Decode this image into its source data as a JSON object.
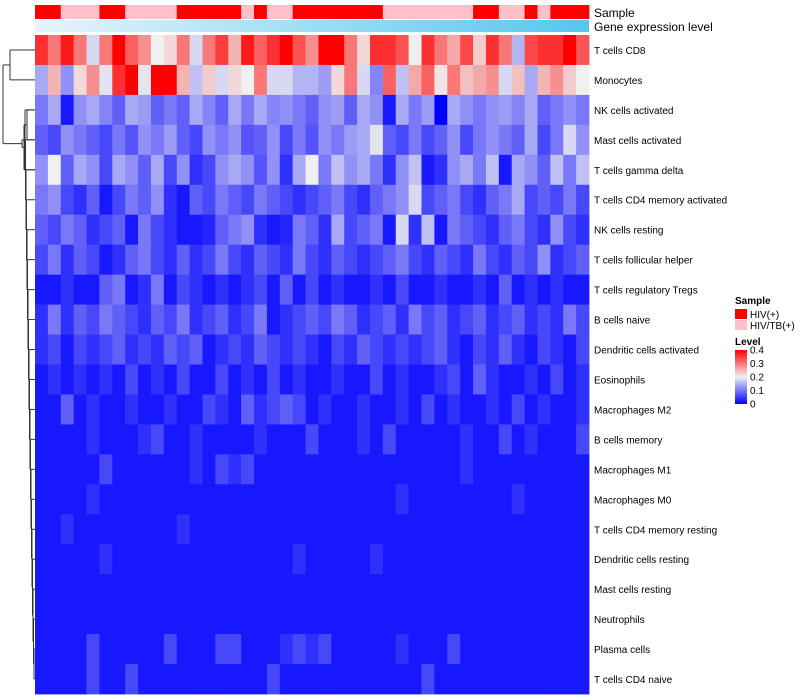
{
  "chart_data": {
    "type": "heatmap",
    "title": "",
    "annotation_tracks": [
      {
        "label": "Sample"
      },
      {
        "label": "Gene expression level"
      }
    ],
    "rows": [
      "T cells CD8",
      "Monocytes",
      "NK cells activated",
      "Mast cells activated",
      "T cells gamma delta",
      "T cells CD4 memory activated",
      "NK cells resting",
      "T cells follicular helper",
      "T cells regulatory  Tregs",
      "B cells naive",
      "Dendritic cells activated",
      "Eosinophils",
      "Macrophages M2",
      "B cells memory",
      "Macrophages M1",
      "Macrophages M0",
      "T cells CD4 memory resting",
      "Dendritic cells resting",
      "Mast cells resting",
      "Neutrophils",
      "Plasma cells",
      "T cells CD4 naive"
    ],
    "n_columns": 43,
    "sample_groups": "AABBBAABBBBAAAAABABBAAAAAAABBBBBBBAABBABAAA",
    "values": [
      [
        0.36,
        0.3,
        0.38,
        0.3,
        0.18,
        0.3,
        0.4,
        0.32,
        0.28,
        0.2,
        0.22,
        0.3,
        0.18,
        0.3,
        0.35,
        0.25,
        0.38,
        0.32,
        0.36,
        0.4,
        0.33,
        0.28,
        0.4,
        0.4,
        0.3,
        0.22,
        0.36,
        0.36,
        0.33,
        0.2,
        0.36,
        0.3,
        0.26,
        0.34,
        0.23,
        0.36,
        0.3,
        0.15,
        0.34,
        0.36,
        0.36,
        0.4,
        0.33
      ],
      [
        0.14,
        0.25,
        0.12,
        0.22,
        0.28,
        0.19,
        0.36,
        0.4,
        0.19,
        0.4,
        0.4,
        0.25,
        0.16,
        0.23,
        0.18,
        0.22,
        0.2,
        0.3,
        0.18,
        0.18,
        0.15,
        0.15,
        0.13,
        0.22,
        0.3,
        0.18,
        0.11,
        0.32,
        0.16,
        0.26,
        0.32,
        0.21,
        0.3,
        0.24,
        0.26,
        0.28,
        0.18,
        0.24,
        0.14,
        0.25,
        0.28,
        0.23,
        0.2
      ],
      [
        0.1,
        0.14,
        0.02,
        0.12,
        0.14,
        0.11,
        0.08,
        0.14,
        0.13,
        0.08,
        0.1,
        0.08,
        0.14,
        0.11,
        0.08,
        0.14,
        0.1,
        0.14,
        0.11,
        0.12,
        0.1,
        0.08,
        0.12,
        0.13,
        0.08,
        0.14,
        0.12,
        0.02,
        0.14,
        0.1,
        0.13,
        0.0,
        0.14,
        0.12,
        0.1,
        0.12,
        0.13,
        0.11,
        0.14,
        0.08,
        0.1,
        0.12,
        0.1
      ],
      [
        0.08,
        0.06,
        0.12,
        0.1,
        0.08,
        0.06,
        0.1,
        0.07,
        0.12,
        0.1,
        0.13,
        0.08,
        0.06,
        0.12,
        0.1,
        0.12,
        0.07,
        0.08,
        0.12,
        0.06,
        0.1,
        0.07,
        0.12,
        0.1,
        0.13,
        0.14,
        0.19,
        0.08,
        0.06,
        0.1,
        0.06,
        0.08,
        0.12,
        0.06,
        0.1,
        0.12,
        0.1,
        0.08,
        0.14,
        0.06,
        0.1,
        0.18,
        0.12
      ],
      [
        0.12,
        0.2,
        0.08,
        0.14,
        0.12,
        0.06,
        0.14,
        0.12,
        0.08,
        0.14,
        0.06,
        0.12,
        0.04,
        0.06,
        0.12,
        0.14,
        0.12,
        0.07,
        0.12,
        0.04,
        0.14,
        0.2,
        0.1,
        0.16,
        0.12,
        0.14,
        0.1,
        0.04,
        0.12,
        0.16,
        0.02,
        0.04,
        0.12,
        0.14,
        0.1,
        0.16,
        0.02,
        0.14,
        0.12,
        0.08,
        0.16,
        0.1,
        0.16
      ],
      [
        0.1,
        0.12,
        0.06,
        0.04,
        0.08,
        0.02,
        0.06,
        0.1,
        0.08,
        0.12,
        0.04,
        0.02,
        0.08,
        0.06,
        0.1,
        0.08,
        0.06,
        0.1,
        0.08,
        0.06,
        0.04,
        0.06,
        0.08,
        0.1,
        0.06,
        0.04,
        0.08,
        0.1,
        0.12,
        0.18,
        0.06,
        0.08,
        0.1,
        0.06,
        0.04,
        0.08,
        0.1,
        0.14,
        0.06,
        0.08,
        0.06,
        0.1,
        0.06
      ],
      [
        0.08,
        0.06,
        0.1,
        0.08,
        0.04,
        0.06,
        0.08,
        0.02,
        0.1,
        0.06,
        0.04,
        0.02,
        0.02,
        0.03,
        0.08,
        0.1,
        0.12,
        0.04,
        0.02,
        0.03,
        0.1,
        0.08,
        0.04,
        0.14,
        0.06,
        0.08,
        0.1,
        0.02,
        0.18,
        0.04,
        0.16,
        0.02,
        0.1,
        0.08,
        0.06,
        0.04,
        0.08,
        0.1,
        0.06,
        0.04,
        0.12,
        0.06,
        0.04
      ],
      [
        0.06,
        0.1,
        0.04,
        0.08,
        0.06,
        0.02,
        0.04,
        0.08,
        0.1,
        0.06,
        0.04,
        0.08,
        0.04,
        0.06,
        0.1,
        0.06,
        0.04,
        0.08,
        0.06,
        0.04,
        0.1,
        0.06,
        0.04,
        0.08,
        0.06,
        0.04,
        0.06,
        0.08,
        0.1,
        0.06,
        0.04,
        0.08,
        0.06,
        0.04,
        0.1,
        0.06,
        0.04,
        0.08,
        0.06,
        0.12,
        0.04,
        0.06,
        0.08
      ],
      [
        0.02,
        0.02,
        0.04,
        0.02,
        0.02,
        0.08,
        0.1,
        0.02,
        0.04,
        0.1,
        0.02,
        0.06,
        0.04,
        0.02,
        0.04,
        0.02,
        0.04,
        0.06,
        0.02,
        0.08,
        0.02,
        0.06,
        0.02,
        0.04,
        0.02,
        0.02,
        0.04,
        0.02,
        0.06,
        0.02,
        0.02,
        0.04,
        0.02,
        0.02,
        0.04,
        0.02,
        0.08,
        0.02,
        0.04,
        0.02,
        0.04,
        0.02,
        0.02
      ],
      [
        0.04,
        0.1,
        0.04,
        0.08,
        0.06,
        0.1,
        0.08,
        0.06,
        0.04,
        0.08,
        0.06,
        0.1,
        0.04,
        0.06,
        0.08,
        0.04,
        0.06,
        0.1,
        0.02,
        0.04,
        0.06,
        0.08,
        0.06,
        0.1,
        0.08,
        0.04,
        0.06,
        0.08,
        0.04,
        0.1,
        0.06,
        0.08,
        0.04,
        0.06,
        0.08,
        0.04,
        0.06,
        0.08,
        0.04,
        0.06,
        0.04,
        0.1,
        0.06
      ],
      [
        0.04,
        0.06,
        0.02,
        0.06,
        0.04,
        0.06,
        0.08,
        0.04,
        0.06,
        0.04,
        0.08,
        0.06,
        0.08,
        0.02,
        0.04,
        0.06,
        0.04,
        0.08,
        0.06,
        0.04,
        0.06,
        0.04,
        0.02,
        0.06,
        0.04,
        0.08,
        0.06,
        0.04,
        0.06,
        0.04,
        0.06,
        0.08,
        0.04,
        0.02,
        0.06,
        0.04,
        0.08,
        0.04,
        0.02,
        0.06,
        0.04,
        0.02,
        0.06
      ],
      [
        0.02,
        0.04,
        0.02,
        0.04,
        0.02,
        0.04,
        0.02,
        0.06,
        0.02,
        0.04,
        0.02,
        0.06,
        0.02,
        0.02,
        0.06,
        0.02,
        0.04,
        0.02,
        0.06,
        0.02,
        0.04,
        0.02,
        0.02,
        0.04,
        0.02,
        0.02,
        0.06,
        0.02,
        0.04,
        0.02,
        0.02,
        0.04,
        0.06,
        0.02,
        0.08,
        0.04,
        0.02,
        0.02,
        0.04,
        0.02,
        0.06,
        0.02,
        0.04
      ],
      [
        0.02,
        0.02,
        0.08,
        0.02,
        0.04,
        0.02,
        0.02,
        0.04,
        0.02,
        0.02,
        0.04,
        0.02,
        0.02,
        0.06,
        0.04,
        0.02,
        0.08,
        0.04,
        0.06,
        0.08,
        0.06,
        0.02,
        0.04,
        0.02,
        0.02,
        0.04,
        0.02,
        0.02,
        0.04,
        0.02,
        0.06,
        0.02,
        0.04,
        0.02,
        0.02,
        0.04,
        0.02,
        0.06,
        0.02,
        0.04,
        0.02,
        0.02,
        0.04
      ],
      [
        0.02,
        0.02,
        0.02,
        0.02,
        0.04,
        0.02,
        0.02,
        0.02,
        0.04,
        0.06,
        0.02,
        0.02,
        0.04,
        0.02,
        0.02,
        0.02,
        0.02,
        0.04,
        0.02,
        0.02,
        0.02,
        0.06,
        0.02,
        0.02,
        0.02,
        0.04,
        0.02,
        0.06,
        0.02,
        0.02,
        0.02,
        0.02,
        0.02,
        0.04,
        0.02,
        0.02,
        0.06,
        0.02,
        0.04,
        0.02,
        0.02,
        0.02,
        0.06
      ],
      [
        0.02,
        0.02,
        0.02,
        0.02,
        0.02,
        0.06,
        0.02,
        0.02,
        0.02,
        0.02,
        0.02,
        0.02,
        0.04,
        0.02,
        0.06,
        0.04,
        0.06,
        0.02,
        0.02,
        0.02,
        0.02,
        0.02,
        0.02,
        0.02,
        0.02,
        0.02,
        0.02,
        0.02,
        0.02,
        0.02,
        0.02,
        0.02,
        0.02,
        0.04,
        0.02,
        0.02,
        0.02,
        0.02,
        0.02,
        0.02,
        0.02,
        0.02,
        0.02
      ],
      [
        0.02,
        0.02,
        0.02,
        0.02,
        0.04,
        0.02,
        0.02,
        0.02,
        0.02,
        0.02,
        0.02,
        0.02,
        0.02,
        0.02,
        0.02,
        0.02,
        0.02,
        0.02,
        0.02,
        0.02,
        0.02,
        0.02,
        0.02,
        0.02,
        0.02,
        0.02,
        0.02,
        0.02,
        0.04,
        0.02,
        0.02,
        0.02,
        0.02,
        0.02,
        0.02,
        0.02,
        0.02,
        0.04,
        0.02,
        0.02,
        0.02,
        0.02,
        0.02
      ],
      [
        0.02,
        0.02,
        0.04,
        0.02,
        0.02,
        0.02,
        0.02,
        0.02,
        0.02,
        0.02,
        0.02,
        0.04,
        0.02,
        0.02,
        0.02,
        0.02,
        0.02,
        0.02,
        0.02,
        0.02,
        0.02,
        0.02,
        0.02,
        0.02,
        0.02,
        0.02,
        0.02,
        0.02,
        0.02,
        0.02,
        0.02,
        0.02,
        0.02,
        0.02,
        0.02,
        0.02,
        0.02,
        0.02,
        0.02,
        0.02,
        0.02,
        0.02,
        0.02
      ],
      [
        0.02,
        0.02,
        0.02,
        0.02,
        0.02,
        0.04,
        0.02,
        0.02,
        0.02,
        0.02,
        0.02,
        0.02,
        0.02,
        0.02,
        0.02,
        0.02,
        0.02,
        0.02,
        0.02,
        0.02,
        0.04,
        0.02,
        0.02,
        0.02,
        0.02,
        0.02,
        0.04,
        0.02,
        0.02,
        0.02,
        0.02,
        0.02,
        0.02,
        0.02,
        0.02,
        0.02,
        0.02,
        0.02,
        0.02,
        0.02,
        0.02,
        0.02,
        0.02
      ],
      [
        0.02,
        0.02,
        0.02,
        0.02,
        0.02,
        0.02,
        0.02,
        0.02,
        0.02,
        0.02,
        0.02,
        0.02,
        0.02,
        0.02,
        0.02,
        0.02,
        0.02,
        0.02,
        0.02,
        0.02,
        0.02,
        0.02,
        0.02,
        0.02,
        0.02,
        0.02,
        0.02,
        0.02,
        0.02,
        0.02,
        0.02,
        0.02,
        0.02,
        0.02,
        0.02,
        0.02,
        0.02,
        0.02,
        0.02,
        0.02,
        0.02,
        0.02,
        0.02
      ],
      [
        0.02,
        0.02,
        0.02,
        0.02,
        0.02,
        0.02,
        0.02,
        0.02,
        0.02,
        0.02,
        0.02,
        0.02,
        0.02,
        0.02,
        0.02,
        0.02,
        0.02,
        0.02,
        0.02,
        0.02,
        0.02,
        0.02,
        0.02,
        0.02,
        0.02,
        0.02,
        0.02,
        0.02,
        0.02,
        0.02,
        0.02,
        0.02,
        0.02,
        0.02,
        0.02,
        0.02,
        0.02,
        0.02,
        0.02,
        0.02,
        0.02,
        0.02,
        0.02
      ],
      [
        0.02,
        0.02,
        0.02,
        0.02,
        0.06,
        0.02,
        0.02,
        0.02,
        0.02,
        0.02,
        0.06,
        0.02,
        0.02,
        0.02,
        0.06,
        0.06,
        0.02,
        0.02,
        0.02,
        0.04,
        0.06,
        0.04,
        0.06,
        0.02,
        0.02,
        0.02,
        0.02,
        0.02,
        0.04,
        0.02,
        0.02,
        0.02,
        0.06,
        0.02,
        0.02,
        0.02,
        0.02,
        0.02,
        0.02,
        0.02,
        0.02,
        0.02,
        0.02
      ],
      [
        0.02,
        0.02,
        0.02,
        0.02,
        0.06,
        0.02,
        0.02,
        0.06,
        0.02,
        0.02,
        0.02,
        0.02,
        0.02,
        0.02,
        0.02,
        0.02,
        0.02,
        0.02,
        0.06,
        0.02,
        0.02,
        0.02,
        0.02,
        0.02,
        0.02,
        0.02,
        0.02,
        0.02,
        0.02,
        0.02,
        0.06,
        0.02,
        0.02,
        0.02,
        0.02,
        0.02,
        0.02,
        0.02,
        0.02,
        0.02,
        0.02,
        0.02,
        0.02
      ]
    ],
    "legend": {
      "sample_title": "Sample",
      "sample_items": [
        {
          "key": "A",
          "label": "HIV(+)",
          "color": "#ff0000"
        },
        {
          "key": "B",
          "label": "HIV/TB(+)",
          "color": "#ffc0cb"
        }
      ],
      "level_title": "Level",
      "level_ticks": [
        "0.4",
        "0.3",
        "0.2",
        "0.1",
        "0"
      ],
      "level_min": 0,
      "level_max": 0.4
    },
    "colors": {
      "low": "#0000ff",
      "mid": "#f0f0f0",
      "high": "#ff0000",
      "expression_gradient_start": "#e6f4fb",
      "expression_gradient_end": "#56c6ee"
    }
  }
}
